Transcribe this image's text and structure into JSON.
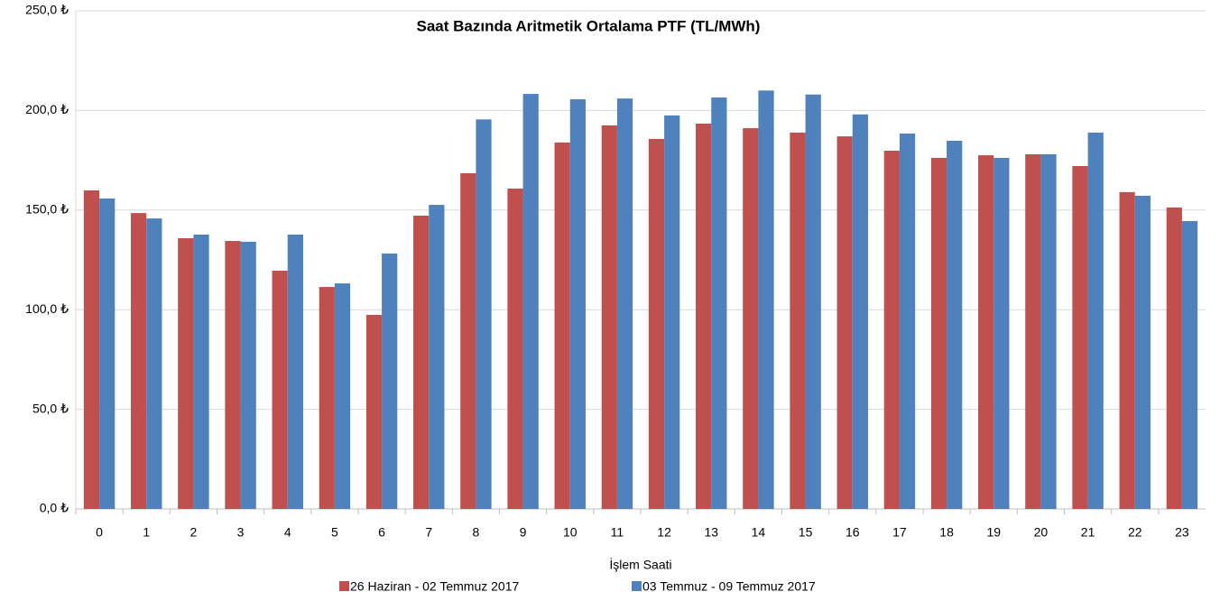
{
  "chart_data": {
    "type": "bar",
    "title": "Saat Bazında Aritmetik Ortalama PTF (TL/MWh)",
    "x_label": "İşlem Saati",
    "categories": [
      "0",
      "1",
      "2",
      "3",
      "4",
      "5",
      "6",
      "7",
      "8",
      "9",
      "10",
      "11",
      "12",
      "13",
      "14",
      "15",
      "16",
      "17",
      "18",
      "19",
      "20",
      "21",
      "22",
      "23"
    ],
    "series": [
      {
        "name": "26 Haziran - 02 Temmuz 2017",
        "color": "#c0504d",
        "values": [
          159.9,
          148.5,
          135.9,
          134.5,
          119.6,
          111.4,
          97.4,
          147.2,
          168.5,
          160.8,
          183.9,
          192.5,
          185.7,
          193.4,
          191.1,
          188.9,
          187,
          179.8,
          176.2,
          177.5,
          178,
          172.1,
          159,
          151.3
        ]
      },
      {
        "name": "03 Temmuz - 09 Temmuz 2017",
        "color": "#4f81bd",
        "values": [
          155.8,
          145.8,
          137.7,
          134.1,
          137.7,
          113.2,
          128.2,
          152.6,
          195.5,
          208.3,
          205.6,
          206,
          197.5,
          206.5,
          210,
          208,
          198,
          188.4,
          184.8,
          176.2,
          178,
          188.9,
          157.2,
          144.5
        ]
      }
    ],
    "ylim": [
      0,
      250
    ],
    "yticks": [
      {
        "value": 0,
        "label": "0,0 ₺"
      },
      {
        "value": 50,
        "label": "50,0 ₺"
      },
      {
        "value": 100,
        "label": "100,0 ₺"
      },
      {
        "value": 150,
        "label": "150,0 ₺"
      },
      {
        "value": 200,
        "label": "200,0 ₺"
      },
      {
        "value": 250,
        "label": "250,0 ₺"
      }
    ],
    "grid": true
  }
}
